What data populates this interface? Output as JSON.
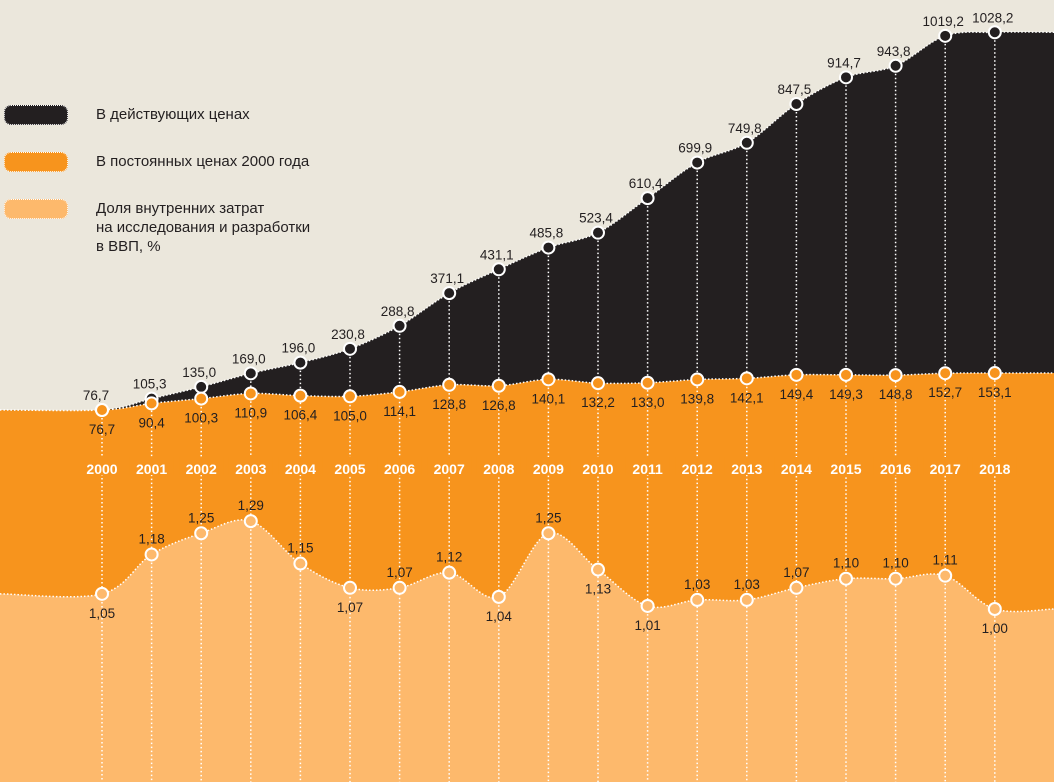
{
  "legend": [
    {
      "label": "В действующих ценах",
      "color": "#231f20"
    },
    {
      "label": "В постоянных ценах 2000 года",
      "color": "#f7941d"
    },
    {
      "label": "Доля внутренних затрат\nна исследования и разработки\nв ВВП, %",
      "color": "#fdb96c"
    }
  ],
  "colors": {
    "background": "#ebe7dc",
    "current": "#231f20",
    "constant": "#f7941d",
    "share": "#fdb96c",
    "text_light": "#ffffff"
  },
  "chart_data": {
    "type": "area",
    "x": [
      "2000",
      "2001",
      "2002",
      "2003",
      "2004",
      "2005",
      "2006",
      "2007",
      "2008",
      "2009",
      "2010",
      "2011",
      "2012",
      "2013",
      "2014",
      "2015",
      "2016",
      "2017",
      "2018"
    ],
    "series": [
      {
        "name": "В действующих ценах",
        "values": [
          76.7,
          105.3,
          135.0,
          169.0,
          196.0,
          230.8,
          288.8,
          371.1,
          431.1,
          485.8,
          523.4,
          610.4,
          699.9,
          749.8,
          847.5,
          914.7,
          943.8,
          1019.2,
          1028.2
        ],
        "labels": [
          "76,7",
          "105,3",
          "135,0",
          "169,0",
          "196,0",
          "230,8",
          "288,8",
          "371,1",
          "431,1",
          "485,8",
          "523,4",
          "610,4",
          "699,9",
          "749,8",
          "847,5",
          "914,7",
          "943,8",
          "1019,2",
          "1028,2"
        ]
      },
      {
        "name": "В постоянных ценах 2000 года",
        "values": [
          76.7,
          90.4,
          100.3,
          110.9,
          106.4,
          105.0,
          114.1,
          128.8,
          126.8,
          140.1,
          132.2,
          133.0,
          139.8,
          142.1,
          149.4,
          149.3,
          148.8,
          152.7,
          153.1
        ],
        "labels": [
          "76,7",
          "90,4",
          "100,3",
          "110,9",
          "106,4",
          "105,0",
          "114,1",
          "128,8",
          "126,8",
          "140,1",
          "132,2",
          "133,0",
          "139,8",
          "142,1",
          "149,4",
          "149,3",
          "148,8",
          "152,7",
          "153,1"
        ]
      },
      {
        "name": "Доля внутренних затрат на исследования и разработки в ВВП, %",
        "values": [
          1.05,
          1.18,
          1.25,
          1.29,
          1.15,
          1.07,
          1.07,
          1.12,
          1.04,
          1.25,
          1.13,
          1.01,
          1.03,
          1.03,
          1.07,
          1.1,
          1.1,
          1.11,
          1.0
        ],
        "labels": [
          "1,05",
          "1,18",
          "1,25",
          "1,29",
          "1,15",
          "1,07",
          "1,07",
          "1,12",
          "1,04",
          "1,25",
          "1,13",
          "1,01",
          "1,03",
          "1,03",
          "1,07",
          "1,10",
          "1,10",
          "1,11",
          "1,00"
        ],
        "label_side": [
          "below",
          "above",
          "above",
          "above",
          "above",
          "below",
          "above",
          "above",
          "below",
          "above",
          "below",
          "below",
          "above",
          "above",
          "above",
          "above",
          "above",
          "above",
          "below"
        ]
      }
    ],
    "grid": false,
    "legend_position": "top-left"
  }
}
